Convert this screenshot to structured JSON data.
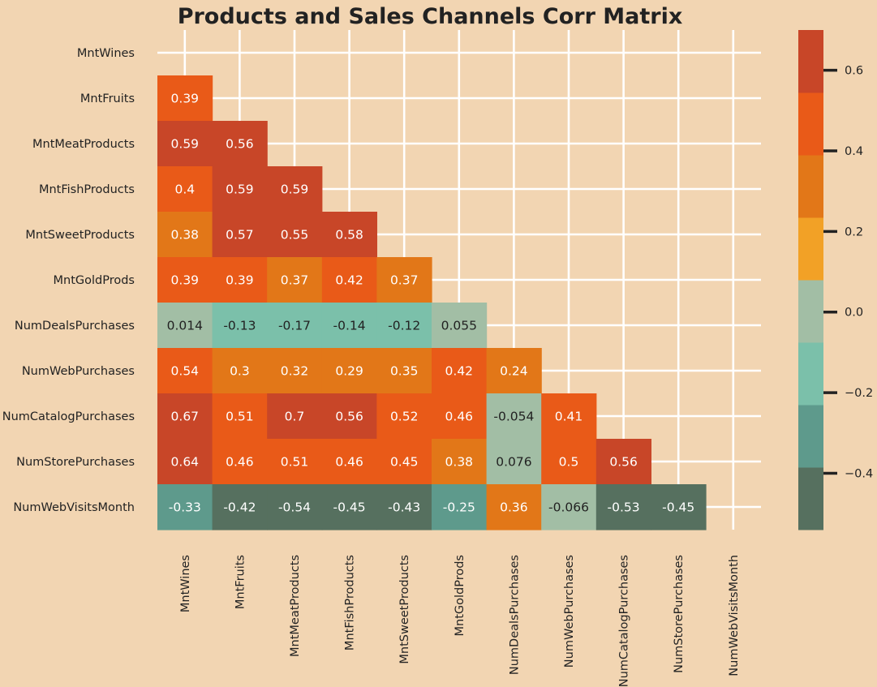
{
  "chart_data": {
    "type": "heatmap",
    "title": "Products and Sales Channels Corr Matrix",
    "labels": [
      "MntWines",
      "MntFruits",
      "MntMeatProducts",
      "MntFishProducts",
      "MntSweetProducts",
      "MntGoldProds",
      "NumDealsPurchases",
      "NumWebPurchases",
      "NumCatalogPurchases",
      "NumStorePurchases",
      "NumWebVisitsMonth"
    ],
    "mask": "upper-triangle-including-diagonal",
    "cells": [
      {
        "row": 1,
        "col": 0,
        "value": 0.39,
        "label": "0.39"
      },
      {
        "row": 2,
        "col": 0,
        "value": 0.59,
        "label": "0.59"
      },
      {
        "row": 2,
        "col": 1,
        "value": 0.56,
        "label": "0.56"
      },
      {
        "row": 3,
        "col": 0,
        "value": 0.4,
        "label": "0.4"
      },
      {
        "row": 3,
        "col": 1,
        "value": 0.59,
        "label": "0.59"
      },
      {
        "row": 3,
        "col": 2,
        "value": 0.59,
        "label": "0.59"
      },
      {
        "row": 4,
        "col": 0,
        "value": 0.38,
        "label": "0.38"
      },
      {
        "row": 4,
        "col": 1,
        "value": 0.57,
        "label": "0.57"
      },
      {
        "row": 4,
        "col": 2,
        "value": 0.55,
        "label": "0.55"
      },
      {
        "row": 4,
        "col": 3,
        "value": 0.58,
        "label": "0.58"
      },
      {
        "row": 5,
        "col": 0,
        "value": 0.39,
        "label": "0.39"
      },
      {
        "row": 5,
        "col": 1,
        "value": 0.39,
        "label": "0.39"
      },
      {
        "row": 5,
        "col": 2,
        "value": 0.37,
        "label": "0.37"
      },
      {
        "row": 5,
        "col": 3,
        "value": 0.42,
        "label": "0.42"
      },
      {
        "row": 5,
        "col": 4,
        "value": 0.37,
        "label": "0.37"
      },
      {
        "row": 6,
        "col": 0,
        "value": 0.014,
        "label": "0.014"
      },
      {
        "row": 6,
        "col": 1,
        "value": -0.13,
        "label": "-0.13"
      },
      {
        "row": 6,
        "col": 2,
        "value": -0.17,
        "label": "-0.17"
      },
      {
        "row": 6,
        "col": 3,
        "value": -0.14,
        "label": "-0.14"
      },
      {
        "row": 6,
        "col": 4,
        "value": -0.12,
        "label": "-0.12"
      },
      {
        "row": 6,
        "col": 5,
        "value": 0.055,
        "label": "0.055"
      },
      {
        "row": 7,
        "col": 0,
        "value": 0.54,
        "label": "0.54"
      },
      {
        "row": 7,
        "col": 1,
        "value": 0.3,
        "label": "0.3"
      },
      {
        "row": 7,
        "col": 2,
        "value": 0.32,
        "label": "0.32"
      },
      {
        "row": 7,
        "col": 3,
        "value": 0.29,
        "label": "0.29"
      },
      {
        "row": 7,
        "col": 4,
        "value": 0.35,
        "label": "0.35"
      },
      {
        "row": 7,
        "col": 5,
        "value": 0.42,
        "label": "0.42"
      },
      {
        "row": 7,
        "col": 6,
        "value": 0.24,
        "label": "0.24"
      },
      {
        "row": 8,
        "col": 0,
        "value": 0.67,
        "label": "0.67"
      },
      {
        "row": 8,
        "col": 1,
        "value": 0.51,
        "label": "0.51"
      },
      {
        "row": 8,
        "col": 2,
        "value": 0.7,
        "label": "0.7"
      },
      {
        "row": 8,
        "col": 3,
        "value": 0.56,
        "label": "0.56"
      },
      {
        "row": 8,
        "col": 4,
        "value": 0.52,
        "label": "0.52"
      },
      {
        "row": 8,
        "col": 5,
        "value": 0.46,
        "label": "0.46"
      },
      {
        "row": 8,
        "col": 6,
        "value": -0.054,
        "label": "-0.054"
      },
      {
        "row": 8,
        "col": 7,
        "value": 0.41,
        "label": "0.41"
      },
      {
        "row": 9,
        "col": 0,
        "value": 0.64,
        "label": "0.64"
      },
      {
        "row": 9,
        "col": 1,
        "value": 0.46,
        "label": "0.46"
      },
      {
        "row": 9,
        "col": 2,
        "value": 0.51,
        "label": "0.51"
      },
      {
        "row": 9,
        "col": 3,
        "value": 0.46,
        "label": "0.46"
      },
      {
        "row": 9,
        "col": 4,
        "value": 0.45,
        "label": "0.45"
      },
      {
        "row": 9,
        "col": 5,
        "value": 0.38,
        "label": "0.38"
      },
      {
        "row": 9,
        "col": 6,
        "value": 0.076,
        "label": "0.076"
      },
      {
        "row": 9,
        "col": 7,
        "value": 0.5,
        "label": "0.5"
      },
      {
        "row": 9,
        "col": 8,
        "value": 0.56,
        "label": "0.56"
      },
      {
        "row": 10,
        "col": 0,
        "value": -0.33,
        "label": "-0.33"
      },
      {
        "row": 10,
        "col": 1,
        "value": -0.42,
        "label": "-0.42"
      },
      {
        "row": 10,
        "col": 2,
        "value": -0.54,
        "label": "-0.54"
      },
      {
        "row": 10,
        "col": 3,
        "value": -0.45,
        "label": "-0.45"
      },
      {
        "row": 10,
        "col": 4,
        "value": -0.43,
        "label": "-0.43"
      },
      {
        "row": 10,
        "col": 5,
        "value": -0.25,
        "label": "-0.25"
      },
      {
        "row": 10,
        "col": 6,
        "value": 0.36,
        "label": "0.36"
      },
      {
        "row": 10,
        "col": 7,
        "value": -0.066,
        "label": "-0.066"
      },
      {
        "row": 10,
        "col": 8,
        "value": -0.53,
        "label": "-0.53"
      },
      {
        "row": 10,
        "col": 9,
        "value": -0.45,
        "label": "-0.45"
      }
    ],
    "colorbar": {
      "vmin": -0.54,
      "vmax": 0.7,
      "ticks": [
        -0.4,
        -0.2,
        0.0,
        0.2,
        0.4,
        0.6
      ],
      "tick_labels": [
        "−0.4",
        "−0.2",
        "0.0",
        "0.2",
        "0.4",
        "0.6"
      ],
      "colors": [
        "#56705f",
        "#5e9a8c",
        "#7bc0aa",
        "#a2bea5",
        "#f2a126",
        "#e27718",
        "#e95a18",
        "#c84628"
      ]
    },
    "grid": true,
    "background_color": "#f2d5b2",
    "grid_color": "#ffffff",
    "text_color_light": "#ffffff",
    "text_color_dark": "#222222"
  }
}
